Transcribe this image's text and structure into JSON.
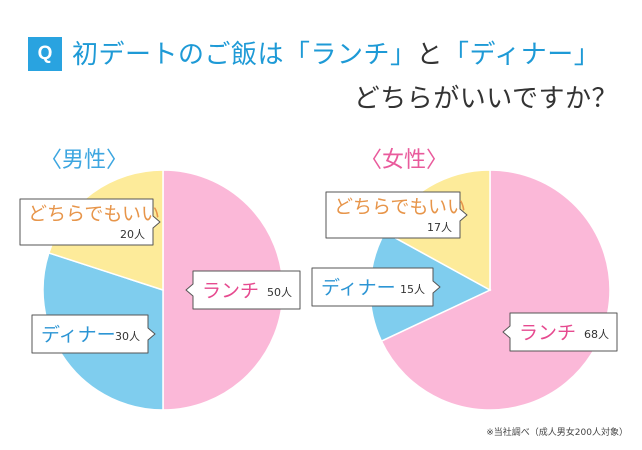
{
  "header": {
    "badge": "Q",
    "title_pre": "初デートのご飯は",
    "title_opt1": "「ランチ」",
    "title_mid": "と",
    "title_opt2": "「ディナー」",
    "title_line2": "どちらがいいですか？"
  },
  "colors": {
    "lunch": "#fbb8d8",
    "dinner": "#7fcdee",
    "either": "#fdeb9a",
    "title_accent": "#1e9ad6",
    "badge": "#29a3e0",
    "male_label": "#3da6e0",
    "female_label": "#e95b9c",
    "label_either_text": "#e7954a",
    "label_lunch_text": "#e64a8f",
    "label_dinner_text": "#2c95d4"
  },
  "chart_data": [
    {
      "type": "pie",
      "title": "〈男性〉",
      "unit": "人",
      "categories": [
        "ランチ",
        "ディナー",
        "どちらでもいい"
      ],
      "values": [
        50,
        30,
        20
      ]
    },
    {
      "type": "pie",
      "title": "〈女性〉",
      "unit": "人",
      "categories": [
        "ランチ",
        "ディナー",
        "どちらでもいい"
      ],
      "values": [
        68,
        15,
        17
      ]
    }
  ],
  "footnote": "※当社調べ（成人男女200人対象）"
}
